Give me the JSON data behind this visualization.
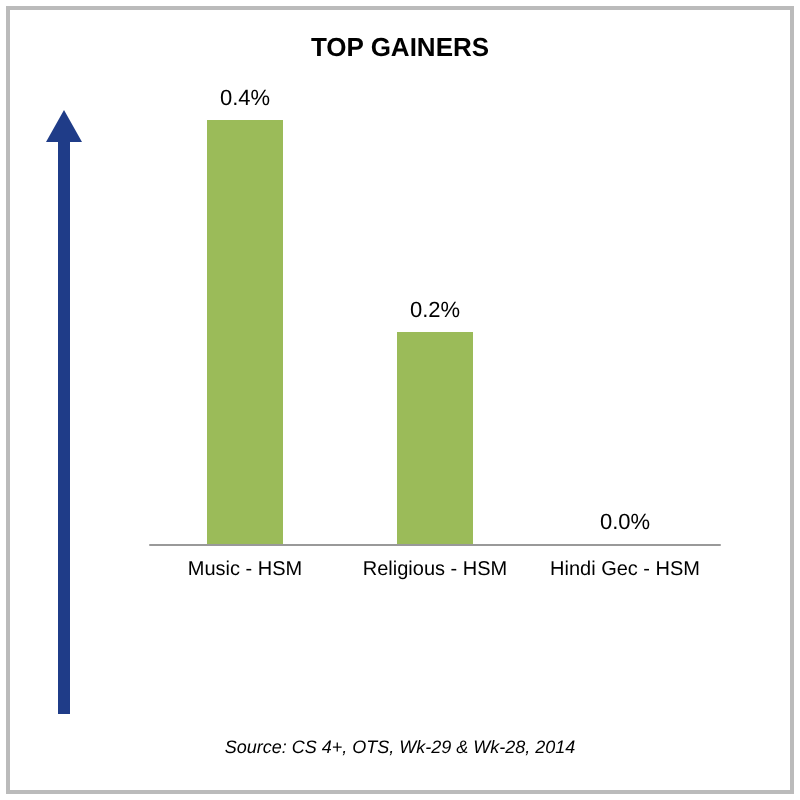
{
  "chart_data": {
    "type": "bar",
    "title": "TOP GAINERS",
    "categories": [
      "Music - HSM",
      "Religious - HSM",
      "Hindi Gec - HSM"
    ],
    "values": [
      0.4,
      0.2,
      0.0
    ],
    "color": "#9bbb59",
    "value_labels": [
      "0.4%",
      "0.2%",
      "0.0%"
    ],
    "annotations": [
      "Source: CS 4+, OTS, Wk-29 & Wk-28, 2014"
    ]
  }
}
